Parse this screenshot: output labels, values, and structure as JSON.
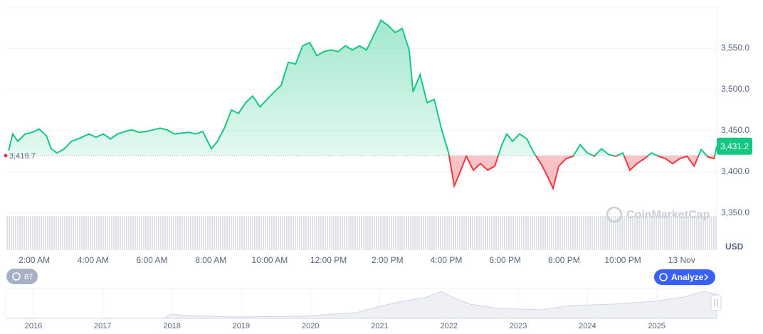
{
  "chart_data": {
    "type": "line",
    "x": [
      1.13,
      1.27,
      1.44,
      1.69,
      1.93,
      2.17,
      2.41,
      2.58,
      2.77,
      3.02,
      3.26,
      3.62,
      3.86,
      4.1,
      4.35,
      4.59,
      4.83,
      5.07,
      5.31,
      5.56,
      5.8,
      6.04,
      6.28,
      6.52,
      6.76,
      7.01,
      7.25,
      7.49,
      7.73,
      8.02,
      8.22,
      8.46,
      8.7,
      8.94,
      9.18,
      9.42,
      9.67,
      9.91,
      10.15,
      10.39,
      10.63,
      10.88,
      11.12,
      11.36,
      11.6,
      11.84,
      12.08,
      12.33,
      12.57,
      12.81,
      13.05,
      13.29,
      13.54,
      13.78,
      14.02,
      14.26,
      14.5,
      14.74,
      14.87,
      15.11,
      15.35,
      15.59,
      15.83,
      16.08,
      16.27,
      16.44,
      16.68,
      16.92,
      17.16,
      17.41,
      17.65,
      17.89,
      18.06,
      18.25,
      18.49,
      18.74,
      18.98,
      19.22,
      19.46,
      19.63,
      19.82,
      20.07,
      20.31,
      20.55,
      20.79,
      21.03,
      21.27,
      21.52,
      21.76,
      22.0,
      22.24,
      22.48,
      22.73,
      22.97,
      23.21,
      23.45,
      23.69,
      23.93,
      24.18,
      24.42,
      24.66,
      24.9,
      25.1,
      25.19
    ],
    "values": [
      3426,
      3446,
      3437,
      3446,
      3448,
      3452,
      3444,
      3428,
      3423,
      3428,
      3437,
      3442,
      3446,
      3442,
      3446,
      3440,
      3446,
      3449,
      3451,
      3448,
      3449,
      3451,
      3453,
      3451,
      3446,
      3447,
      3448,
      3446,
      3449,
      3428,
      3437,
      3453,
      3475,
      3471,
      3484,
      3492,
      3479,
      3488,
      3497,
      3505,
      3533,
      3531,
      3553,
      3557,
      3541,
      3546,
      3548,
      3546,
      3553,
      3548,
      3553,
      3548,
      3566,
      3584,
      3578,
      3569,
      3574,
      3548,
      3497,
      3518,
      3484,
      3488,
      3453,
      3423,
      3383,
      3397,
      3419,
      3402,
      3410,
      3402,
      3407,
      3433,
      3446,
      3437,
      3446,
      3440,
      3423,
      3410,
      3393,
      3380,
      3407,
      3416,
      3419,
      3433,
      3423,
      3419,
      3428,
      3421,
      3419,
      3423,
      3402,
      3410,
      3416,
      3423,
      3419,
      3416,
      3410,
      3416,
      3419,
      3407,
      3427,
      3418,
      3416,
      3431.2
    ],
    "color_up": "#16c784",
    "color_down": "#ea3943",
    "baseline": {
      "value": 3419.7,
      "label": "3,419.7"
    },
    "last_label": "3,431.2",
    "xlim": [
      1.03,
      25.19
    ],
    "xticks": [
      {
        "value": 2,
        "label": "2:00 AM"
      },
      {
        "value": 4,
        "label": "4:00 AM"
      },
      {
        "value": 6,
        "label": "6:00 AM"
      },
      {
        "value": 8,
        "label": "8:00 AM"
      },
      {
        "value": 10,
        "label": "10:00 AM"
      },
      {
        "value": 12,
        "label": "12:00 PM"
      },
      {
        "value": 14,
        "label": "2:00 PM"
      },
      {
        "value": 16,
        "label": "4:00 PM"
      },
      {
        "value": 18,
        "label": "6:00 PM"
      },
      {
        "value": 20,
        "label": "8:00 PM"
      },
      {
        "value": 22,
        "label": "10:00 PM"
      },
      {
        "value": 24,
        "label": "13 Nov"
      }
    ],
    "ylim": [
      3305,
      3600
    ],
    "yticks": [
      {
        "value": 3350,
        "label": "3,350.0"
      },
      {
        "value": 3400,
        "label": "3,400.0"
      },
      {
        "value": 3450,
        "label": "3,450.0"
      },
      {
        "value": 3500,
        "label": "3,500.0"
      },
      {
        "value": 3550,
        "label": "3,550.0"
      }
    ],
    "grid": true,
    "unit": "USD",
    "watermark": "CoinMarketCap"
  },
  "controls": {
    "history_count": 87,
    "analyze": "Analyze"
  },
  "navigator": {
    "years": [
      "2016",
      "2017",
      "2018",
      "2019",
      "2020",
      "2021",
      "2022",
      "2023",
      "2024",
      "2025"
    ]
  }
}
